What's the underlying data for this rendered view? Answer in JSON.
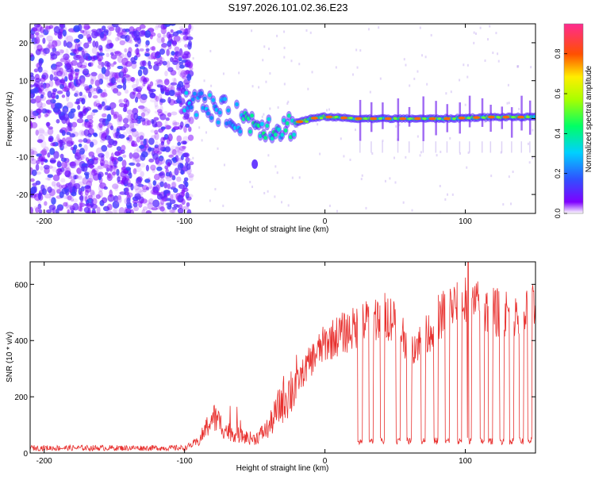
{
  "figure": {
    "title": "S197.2026.101.02.36.E23"
  },
  "chart_data": [
    {
      "type": "heatmap",
      "xlabel": "Height of straight line (km)",
      "ylabel": "Frequency (Hz)",
      "xlim": [
        -210,
        150
      ],
      "ylim": [
        -25,
        25
      ],
      "xticks": [
        -200,
        -100,
        0,
        100
      ],
      "xtick_labels": [
        "-200",
        "-100",
        "0",
        "100"
      ],
      "yticks": [
        -20,
        -10,
        0,
        10,
        20
      ],
      "ytick_labels": [
        "-20",
        "-10",
        "0",
        "10",
        "20"
      ],
      "noise_region_end_x": -95,
      "signal_trace": {
        "x": [
          -100,
          -90,
          -80,
          -70,
          -60,
          -50,
          -40,
          -30,
          -20,
          -10,
          0,
          10,
          20,
          30,
          40,
          50,
          60,
          70,
          80,
          90,
          100,
          110,
          120,
          130,
          140,
          150
        ],
        "y": [
          5,
          4,
          3,
          1.5,
          0,
          -1,
          -2,
          -2.5,
          -1,
          0,
          0.5,
          0.3,
          0,
          0,
          0,
          0,
          0,
          0,
          0,
          0,
          0.2,
          0.3,
          0.4,
          0.4,
          0.4,
          0.4
        ]
      },
      "colorbar": {
        "label": "Normalized spectral amplitude",
        "range": [
          0,
          0.95
        ],
        "ticks": [
          0.0,
          0.2,
          0.4,
          0.6,
          0.8
        ],
        "tick_labels": [
          "0.0",
          "0.2",
          "0.4",
          "0.6",
          "0.8"
        ]
      }
    },
    {
      "type": "line",
      "xlabel": "Height of straight line (km)",
      "ylabel": "SNR (10 * v/v)",
      "xlim": [
        -210,
        150
      ],
      "ylim": [
        0,
        680
      ],
      "xticks": [
        -200,
        -100,
        0,
        100
      ],
      "xtick_labels": [
        "-200",
        "-100",
        "0",
        "100"
      ],
      "yticks": [
        0,
        200,
        400,
        600
      ],
      "ytick_labels": [
        "0",
        "200",
        "400",
        "600"
      ],
      "color": "#e8302e",
      "envelope": {
        "x": [
          -210,
          -100,
          -90,
          -80,
          -70,
          -60,
          -50,
          -40,
          -30,
          -20,
          -10,
          0,
          10,
          20,
          30,
          40,
          50,
          60,
          70,
          80,
          90,
          100,
          110,
          120,
          130,
          140,
          150
        ],
        "y": [
          18,
          18,
          40,
          130,
          80,
          60,
          50,
          90,
          190,
          250,
          330,
          390,
          420,
          440,
          470,
          490,
          480,
          380,
          400,
          480,
          520,
          540,
          520,
          500,
          500,
          510,
          510
        ]
      },
      "dropout_x": [
        25,
        33,
        41,
        52,
        60,
        70,
        79,
        87,
        96,
        103,
        112,
        118,
        126,
        133,
        140,
        146
      ],
      "dropout_level": 30,
      "peak": {
        "x": 102,
        "y": 680
      }
    }
  ]
}
